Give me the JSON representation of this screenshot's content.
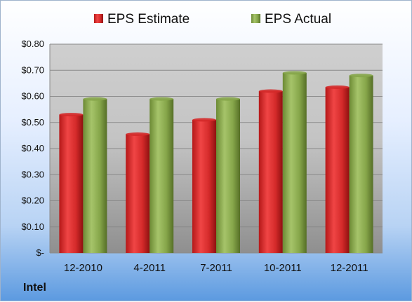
{
  "chart_data": {
    "type": "bar",
    "categories": [
      "12-2010",
      "4-2011",
      "7-2011",
      "10-2011",
      "12-2011"
    ],
    "series": [
      {
        "name": "EPS Estimate",
        "values": [
          0.53,
          0.455,
          0.51,
          0.62,
          0.635
        ],
        "color": "#d42a2a"
      },
      {
        "name": "EPS Actual",
        "values": [
          0.59,
          0.59,
          0.59,
          0.69,
          0.68
        ],
        "color": "#86a64a"
      }
    ],
    "ylim": [
      0,
      0.8
    ],
    "yticks": [
      {
        "value": 0,
        "label": "$-"
      },
      {
        "value": 0.1,
        "label": "$0.10"
      },
      {
        "value": 0.2,
        "label": "$0.20"
      },
      {
        "value": 0.3,
        "label": "$0.30"
      },
      {
        "value": 0.4,
        "label": "$0.40"
      },
      {
        "value": 0.5,
        "label": "$0.50"
      },
      {
        "value": 0.6,
        "label": "$0.60"
      },
      {
        "value": 0.7,
        "label": "$0.70"
      },
      {
        "value": 0.8,
        "label": "$0.80"
      }
    ],
    "grid": true,
    "legend_position": "top"
  },
  "footer": {
    "company": "Intel"
  }
}
